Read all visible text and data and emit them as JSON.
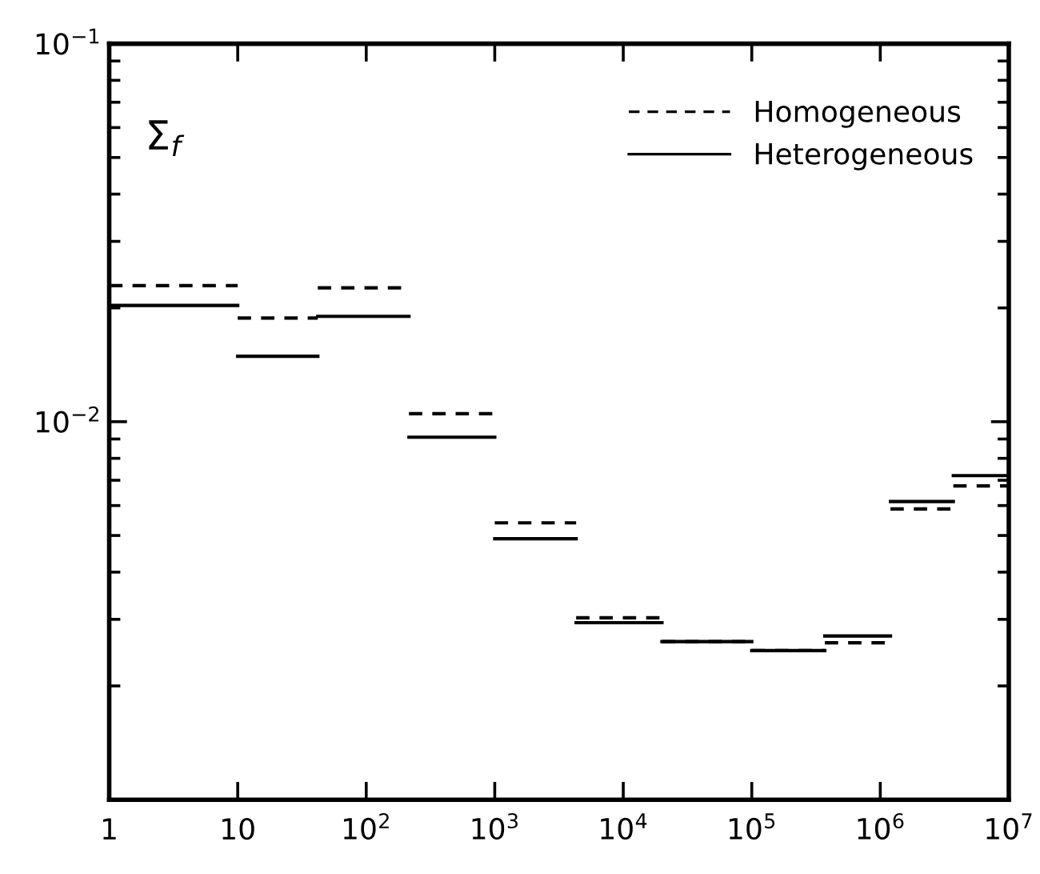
{
  "chart_data": {
    "type": "line",
    "ylabel": "Σ$_{f}$",
    "log": "xy",
    "series": [
      {
        "name": "Homogeneous",
        "color": "#000000",
        "line_style": "dashed",
        "x": [
          1,
          10,
          null,
          10,
          42,
          null,
          42,
          215,
          null,
          215,
          1000,
          null,
          1000,
          4300,
          null,
          4300,
          20000,
          null,
          20000,
          100000,
          null,
          100000,
          370000,
          null,
          370000,
          1200000,
          null,
          1200000,
          3700000,
          null,
          3700000,
          10000000
        ],
        "values": [
          0.0229,
          0.0229,
          null,
          0.0188,
          0.0188,
          null,
          0.0226,
          0.0226,
          null,
          0.0105,
          0.0105,
          null,
          0.0054,
          0.0054,
          null,
          0.00303,
          0.00303,
          null,
          0.00262,
          0.00262,
          null,
          0.00248,
          0.00248,
          null,
          0.0026,
          0.0026,
          null,
          0.00588,
          0.00588,
          null,
          0.00676,
          0.00676
        ]
      },
      {
        "name": "Heterogeneous",
        "color": "#000000",
        "line_style": "solid",
        "x": [
          1,
          10,
          null,
          10,
          42,
          null,
          42,
          215,
          null,
          215,
          1000,
          null,
          1000,
          4300,
          null,
          4300,
          20000,
          null,
          20000,
          100000,
          null,
          100000,
          370000,
          null,
          370000,
          1200000,
          null,
          1200000,
          3700000,
          null,
          3700000,
          10000000
        ],
        "values": [
          0.0203,
          0.0203,
          null,
          0.0149,
          0.0149,
          null,
          0.019,
          0.019,
          null,
          0.0091,
          0.0091,
          null,
          0.0049,
          0.0049,
          null,
          0.00294,
          0.00294,
          null,
          0.00262,
          0.00262,
          null,
          0.00248,
          0.00248,
          null,
          0.00271,
          0.00271,
          null,
          0.00615,
          0.00615,
          null,
          0.0072,
          0.0072
        ]
      }
    ],
    "xlim": [
      1,
      10000000
    ],
    "xticks": [
      1,
      10,
      {
        "value": 100,
        "label": "10$^{2}$"
      },
      {
        "value": 1000,
        "label": "10$^{3}$"
      },
      {
        "value": 10000,
        "label": "10$^{4}$"
      },
      {
        "value": 100000,
        "label": "10$^{5}$"
      },
      {
        "value": 1000000,
        "label": "10$^{6}$"
      },
      {
        "value": 10000000,
        "label": "10$^{7}$"
      }
    ],
    "ylim": [
      0.001,
      0.1
    ],
    "yticks": [
      {
        "value": 0.001,
        "label": null
      },
      {
        "value": 0.01,
        "label": "10$^{−2}$"
      },
      {
        "value": 0.1,
        "label": "10$^{−1}$"
      }
    ],
    "legend": "top right",
    "grid": false
  }
}
